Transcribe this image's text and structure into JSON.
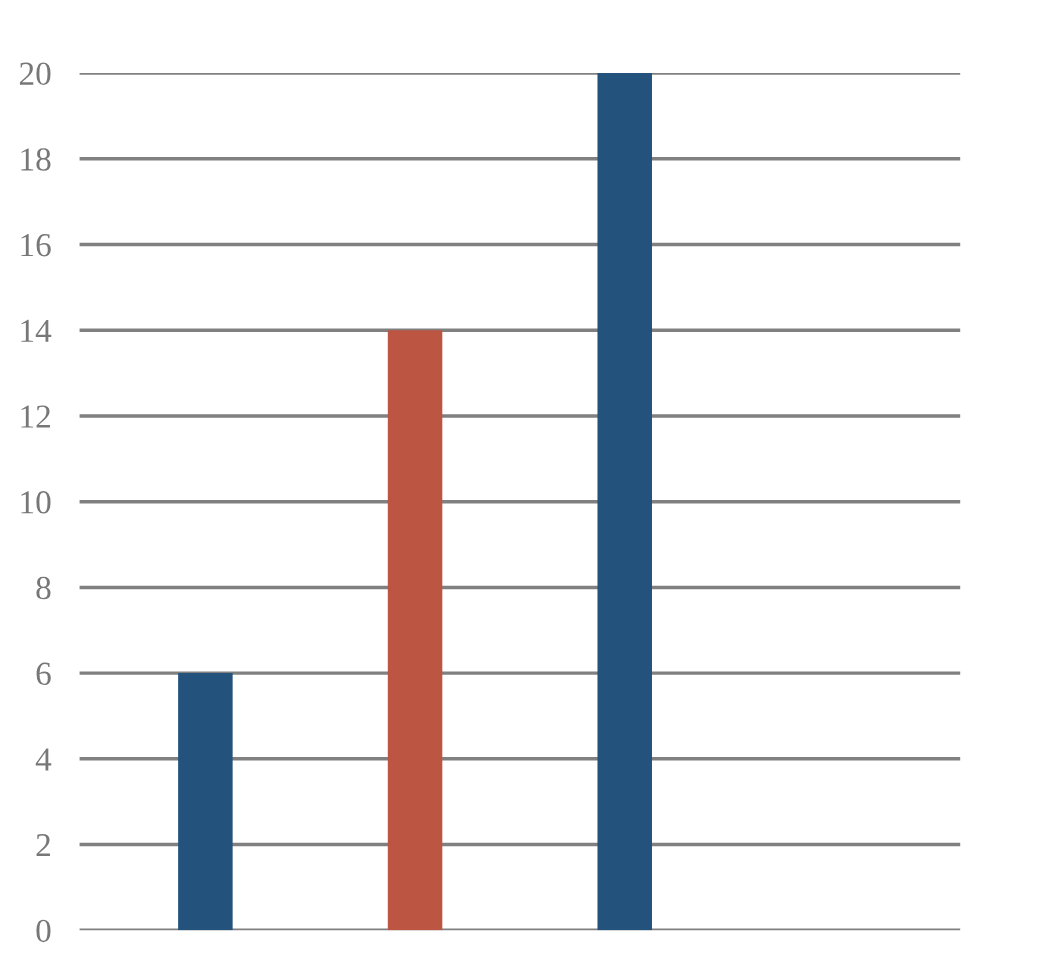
{
  "chart_data": {
    "type": "bar",
    "categories": [
      null,
      null,
      null,
      null
    ],
    "values": [
      6,
      14,
      20,
      0
    ],
    "colors": [
      "#23527c",
      "#bc5642",
      "#23527c",
      "#bc5642"
    ],
    "ylim": [
      0,
      20
    ],
    "yticks": [
      0,
      2,
      4,
      6,
      8,
      10,
      12,
      14,
      16,
      18,
      20
    ],
    "grid": "y",
    "legend": false
  }
}
